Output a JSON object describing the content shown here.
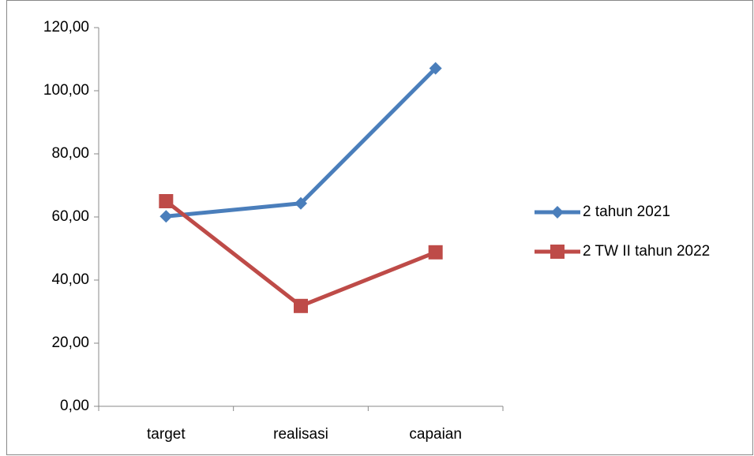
{
  "chart_data": {
    "type": "line",
    "categories": [
      "target",
      "realisasi",
      "capaian"
    ],
    "series": [
      {
        "name": "2 tahun 2021",
        "color": "#4a7ebb",
        "marker": "diamond",
        "values": [
          60.2,
          64.3,
          107.1
        ]
      },
      {
        "name": "2 TW II tahun 2022",
        "color": "#be4b48",
        "marker": "square",
        "values": [
          65,
          31.8,
          48.8
        ]
      }
    ],
    "ylim": [
      0,
      120
    ],
    "yticks": [
      {
        "value": 0,
        "label": "0,00"
      },
      {
        "value": 20,
        "label": "20,00"
      },
      {
        "value": 40,
        "label": "40,00"
      },
      {
        "value": 60,
        "label": "60,00"
      },
      {
        "value": 80,
        "label": "80,00"
      },
      {
        "value": 100,
        "label": "100,00"
      },
      {
        "value": 120,
        "label": "120,00"
      }
    ],
    "legend": "right"
  }
}
